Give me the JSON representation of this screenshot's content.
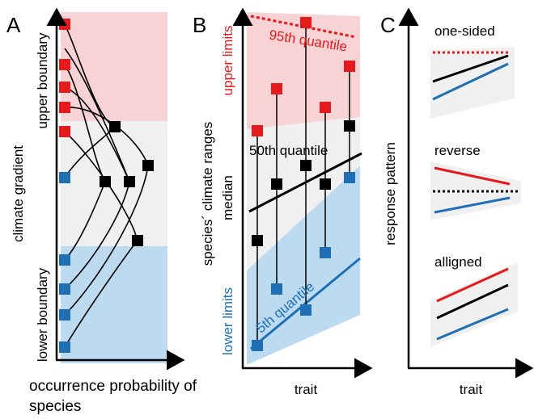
{
  "panels": [
    {
      "label": "A",
      "y_axis": "climate gradient",
      "upper": "upper boundary",
      "lower": "lower boundary",
      "x_axis": "occurrence probability of species"
    },
    {
      "label": "B",
      "y_axis": "species´ climate ranges",
      "upper": "upper limits",
      "middle": "median",
      "lower": "lower limits",
      "q95": "95th quantile",
      "q50": "50th quantile",
      "q5": "5th quantile",
      "x_axis": "trait"
    },
    {
      "label": "C",
      "y_axis": "response pattern",
      "patterns": [
        "one-sided",
        "reverse",
        "alligned"
      ],
      "x_axis": "trait"
    }
  ]
}
